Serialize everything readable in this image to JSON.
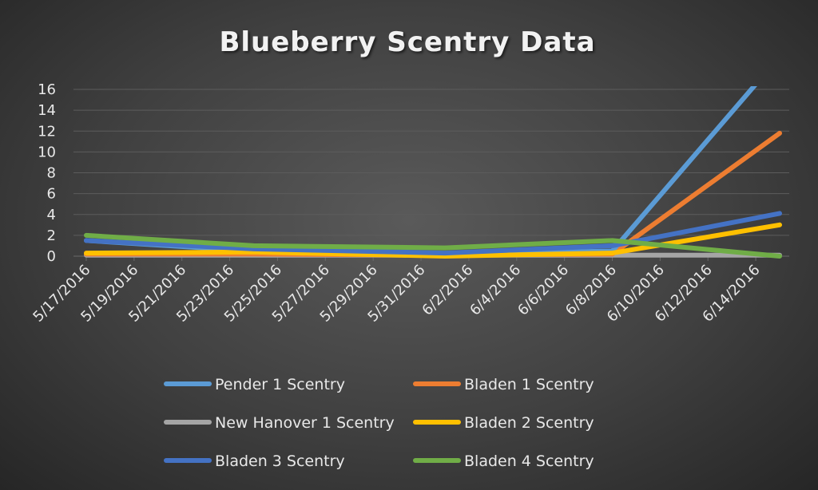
{
  "chart_data": {
    "type": "line",
    "title": "Blueberry Scentry Data",
    "xlabel": "",
    "ylabel": "",
    "ylim": [
      0,
      16
    ],
    "y_ticks": [
      "0",
      "2",
      "4",
      "6",
      "8",
      "10",
      "12",
      "14",
      "16"
    ],
    "y_tick_values": [
      0,
      2,
      4,
      6,
      8,
      10,
      12,
      14,
      16
    ],
    "x_range": [
      "5/17/2016",
      "6/15/2016"
    ],
    "x_tick_labels": [
      "5/17/2016",
      "5/19/2016",
      "5/21/2016",
      "5/23/2016",
      "5/25/2016",
      "5/27/2016",
      "5/29/2016",
      "5/31/2016",
      "6/2/2016",
      "6/4/2016",
      "6/6/2016",
      "6/8/2016",
      "6/10/2016",
      "6/12/2016",
      "6/14/2016"
    ],
    "grid": true,
    "legend_position": "bottom",
    "series": [
      {
        "name": "Pender 1 Scentry",
        "color": "#5b9bd5",
        "points": [
          {
            "x": "5/17/2016",
            "y": 1.5
          },
          {
            "x": "5/24/2016",
            "y": 0.5
          },
          {
            "x": "6/1/2016",
            "y": 0.2
          },
          {
            "x": "6/8/2016",
            "y": 0.5
          },
          {
            "x": "6/14/2016",
            "y": 16.5
          }
        ]
      },
      {
        "name": "Bladen 1 Scentry",
        "color": "#ed7d31",
        "points": [
          {
            "x": "5/17/2016",
            "y": 0.2
          },
          {
            "x": "5/24/2016",
            "y": 0.2
          },
          {
            "x": "6/1/2016",
            "y": 0.1
          },
          {
            "x": "6/8/2016",
            "y": 0.2
          },
          {
            "x": "6/15/2016",
            "y": 11.8
          }
        ]
      },
      {
        "name": "New Hanover 1 Scentry",
        "color": "#a5a5a5",
        "points": [
          {
            "x": "5/17/2016",
            "y": 0.1
          },
          {
            "x": "5/24/2016",
            "y": 0.1
          },
          {
            "x": "6/1/2016",
            "y": 0.1
          },
          {
            "x": "6/8/2016",
            "y": 0.1
          },
          {
            "x": "6/15/2016",
            "y": 0.1
          }
        ]
      },
      {
        "name": "Bladen 2 Scentry",
        "color": "#ffc000",
        "points": [
          {
            "x": "5/17/2016",
            "y": 0.3
          },
          {
            "x": "5/24/2016",
            "y": 0.4
          },
          {
            "x": "6/1/2016",
            "y": 0.0
          },
          {
            "x": "6/8/2016",
            "y": 0.3
          },
          {
            "x": "6/15/2016",
            "y": 3.0
          }
        ]
      },
      {
        "name": "Bladen 3 Scentry",
        "color": "#4472c4",
        "points": [
          {
            "x": "5/17/2016",
            "y": 1.5
          },
          {
            "x": "5/24/2016",
            "y": 0.7
          },
          {
            "x": "6/1/2016",
            "y": 0.3
          },
          {
            "x": "6/8/2016",
            "y": 1.0
          },
          {
            "x": "6/15/2016",
            "y": 4.1
          }
        ]
      },
      {
        "name": "Bladen 4 Scentry",
        "color": "#70ad47",
        "points": [
          {
            "x": "5/17/2016",
            "y": 2.0
          },
          {
            "x": "5/24/2016",
            "y": 1.0
          },
          {
            "x": "6/1/2016",
            "y": 0.8
          },
          {
            "x": "6/8/2016",
            "y": 1.5
          },
          {
            "x": "6/15/2016",
            "y": 0.0
          }
        ]
      }
    ]
  }
}
